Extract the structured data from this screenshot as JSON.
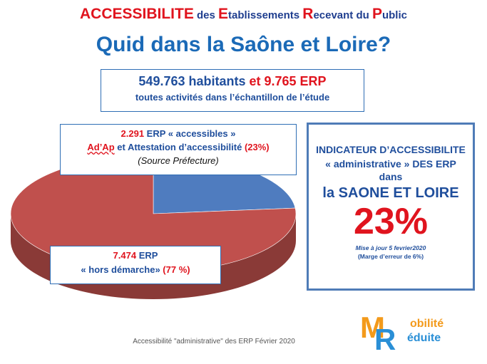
{
  "header": {
    "line1": {
      "w1_cap": "ACCESSIBILITE",
      "w2": " des ",
      "w3_cap": "E",
      "w3_rest": "tablissements ",
      "w4_cap": "R",
      "w4_rest": "ecevant du ",
      "w5_cap": "P",
      "w5_rest": "ublic"
    },
    "line2": "Quid dans la Saône et Loire?"
  },
  "stats_box": {
    "part1": "549.763 habitants ",
    "part2": "et 9.765 ERP",
    "line2": "toutes activités dans l’échantillon de l’étude"
  },
  "accessible_box": {
    "l1_red": "2.291",
    "l1_rest": " ERP « accessibles »",
    "l2_red": "Ad’Ap",
    "l2_mid": " et Attestation d’accessibilité ",
    "l2_pct": "(23%)",
    "l3": "(Source Préfecture)"
  },
  "hors_box": {
    "l1_red": "7.474",
    "l1_rest": "  ERP",
    "l2_main": "« hors démarche» ",
    "l2_pct": "(77 %)"
  },
  "indicator_box": {
    "l1": "INDICATEUR D’ACCESSIBILITE",
    "l2": "« administrative » DES ERP",
    "l3": "dans",
    "l4": "la SAONE ET LOIRE",
    "pct": "23%",
    "update": "Mise à  jour 5 fevrier2020",
    "margin": "(Marge d’erreur de 6%)"
  },
  "caption": "Accessibilité \"administrative\" des ERP Février 2020",
  "logo": {
    "m": "M",
    "r": "R",
    "t1": "obilité",
    "t2": "éduite"
  },
  "chart_data": {
    "type": "pie",
    "style": "3d",
    "slices": [
      {
        "label": "ERP « accessibles »",
        "value": 2291,
        "percent": 23,
        "color": "#4f7cbf"
      },
      {
        "label": "ERP « hors démarche»",
        "value": 7474,
        "percent": 77,
        "color": "#c0504d"
      }
    ],
    "start_angle_deg": -90,
    "direction": "clockwise"
  }
}
